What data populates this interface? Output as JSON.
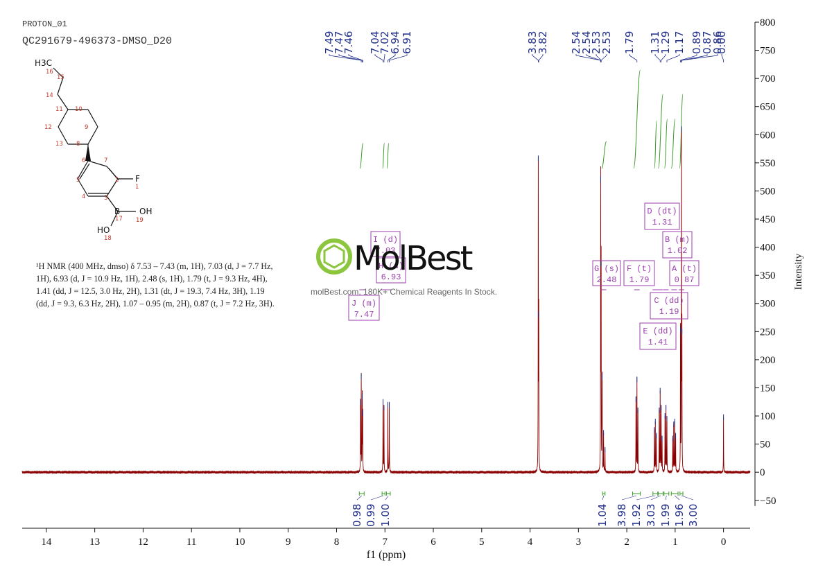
{
  "header": {
    "line1": "PROTON_01",
    "line2": "QC291679-496373-DMSO_D20"
  },
  "nmr_text": {
    "line1": "¹H NMR (400 MHz, dmso) δ 7.53 – 7.43 (m, 1H), 7.03 (d, J = 7.7 Hz,",
    "line2": "1H), 6.93 (d, J = 10.9 Hz, 1H), 2.48 (s, 1H), 1.79 (t, J = 9.3 Hz, 4H),",
    "line3": "1.41 (dd, J = 12.5, 3.0 Hz, 2H), 1.31 (dt, J = 19.3, 7.4 Hz, 3H), 1.19",
    "line4": "(dd, J = 9.3, 6.3 Hz, 2H), 1.07 – 0.95 (m, 2H), 0.87 (t, J = 7.2 Hz, 3H)."
  },
  "watermark": {
    "brand": "MolBest",
    "tagline": "molBest.com, 180K+ Chemical Reagents In Stock."
  },
  "structure": {
    "atoms": [
      "H3C",
      "F",
      "B",
      "OH",
      "HO"
    ],
    "numbers": [
      "16",
      "15",
      "14",
      "11",
      "10",
      "9",
      "12",
      "13",
      "8",
      "7",
      "6",
      "5",
      "4",
      "3",
      "2",
      "1",
      "17",
      "19",
      "18"
    ]
  },
  "chart_data": {
    "type": "line",
    "xlabel": "f1 (ppm)",
    "ylabel": "Intensity",
    "xlim": [
      14.5,
      -0.55
    ],
    "ylim": [
      -70,
      800
    ],
    "x_ticks": [
      14,
      13,
      12,
      11,
      10,
      9,
      8,
      7,
      6,
      5,
      4,
      3,
      2,
      1,
      0
    ],
    "y_ticks": [
      -50,
      0,
      50,
      100,
      150,
      200,
      250,
      300,
      350,
      400,
      450,
      500,
      550,
      600,
      650,
      700,
      750,
      800
    ],
    "colors": {
      "spectrum": "#8b0000",
      "integral": "#3a9a2a",
      "label": "#1f2d8a",
      "multiplet_box": "#9b3fae"
    },
    "peaks": [
      {
        "ppm": 7.505,
        "height": 125
      },
      {
        "ppm": 7.49,
        "height": 170
      },
      {
        "ppm": 7.47,
        "height": 135
      },
      {
        "ppm": 7.46,
        "height": 105
      },
      {
        "ppm": 7.04,
        "height": 125
      },
      {
        "ppm": 7.02,
        "height": 115
      },
      {
        "ppm": 6.94,
        "height": 120
      },
      {
        "ppm": 6.91,
        "height": 120
      },
      {
        "ppm": 3.83,
        "height": 558
      },
      {
        "ppm": 3.82,
        "height": 280
      },
      {
        "ppm": 2.54,
        "height": 520
      },
      {
        "ppm": 2.53,
        "height": 370
      },
      {
        "ppm": 2.51,
        "height": 170
      },
      {
        "ppm": 2.48,
        "height": 70
      },
      {
        "ppm": 2.45,
        "height": 40
      },
      {
        "ppm": 1.81,
        "height": 130
      },
      {
        "ppm": 1.79,
        "height": 165
      },
      {
        "ppm": 1.77,
        "height": 110
      },
      {
        "ppm": 1.43,
        "height": 75
      },
      {
        "ppm": 1.41,
        "height": 90
      },
      {
        "ppm": 1.39,
        "height": 65
      },
      {
        "ppm": 1.33,
        "height": 110
      },
      {
        "ppm": 1.31,
        "height": 145
      },
      {
        "ppm": 1.29,
        "height": 115
      },
      {
        "ppm": 1.27,
        "height": 60
      },
      {
        "ppm": 1.21,
        "height": 100
      },
      {
        "ppm": 1.19,
        "height": 115
      },
      {
        "ppm": 1.17,
        "height": 95
      },
      {
        "ppm": 1.05,
        "height": 60
      },
      {
        "ppm": 1.03,
        "height": 85
      },
      {
        "ppm": 1.01,
        "height": 90
      },
      {
        "ppm": 0.99,
        "height": 65
      },
      {
        "ppm": 0.89,
        "height": 255
      },
      {
        "ppm": 0.87,
        "height": 610
      },
      {
        "ppm": 0.86,
        "height": 250
      },
      {
        "ppm": 0.0,
        "height": 98
      }
    ],
    "peak_label_groups": [
      {
        "labels": [
          "7.49",
          "7.47",
          "7.46"
        ],
        "targets": [
          7.49,
          7.47,
          7.46
        ]
      },
      {
        "labels": [
          "7.04",
          "7.02"
        ],
        "targets": [
          7.04,
          7.02
        ]
      },
      {
        "labels": [
          "6.94",
          "6.91"
        ],
        "targets": [
          6.94,
          6.91
        ]
      },
      {
        "labels": [
          "3.83",
          "3.82"
        ],
        "targets": [
          3.83,
          3.82
        ]
      },
      {
        "labels": [
          "2.54",
          "2.54",
          "2.53",
          "2.53"
        ],
        "targets": [
          2.54,
          2.54,
          2.53,
          2.53
        ]
      },
      {
        "labels": [
          "1.79"
        ],
        "targets": [
          1.79
        ]
      },
      {
        "labels": [
          "1.31",
          "1.29"
        ],
        "targets": [
          1.31,
          1.29
        ]
      },
      {
        "labels": [
          "1.17"
        ],
        "targets": [
          1.17
        ]
      },
      {
        "labels": [
          "0.89",
          "0.87",
          "0.86"
        ],
        "targets": [
          0.89,
          0.87,
          0.86
        ]
      },
      {
        "labels": [
          "0.00"
        ],
        "targets": [
          0.0
        ]
      }
    ],
    "integrals": [
      {
        "from": 7.53,
        "to": 7.43,
        "value": "0.98"
      },
      {
        "from": 7.06,
        "to": 7.0,
        "value": "0.99"
      },
      {
        "from": 6.97,
        "to": 6.89,
        "value": "1.00"
      },
      {
        "from": 2.5,
        "to": 2.45,
        "value": "1.04"
      },
      {
        "from": 1.88,
        "to": 1.72,
        "value": "3.98"
      },
      {
        "from": 1.46,
        "to": 1.36,
        "value": "1.92"
      },
      {
        "from": 1.35,
        "to": 1.25,
        "value": "3.03"
      },
      {
        "from": 1.23,
        "to": 1.13,
        "value": "1.99"
      },
      {
        "from": 1.08,
        "to": 0.94,
        "value": "1.96"
      },
      {
        "from": 0.9,
        "to": 0.84,
        "value": "3.00"
      }
    ],
    "multiplets": [
      {
        "id": "I",
        "type": "d",
        "shift": "7.03",
        "ppm": 7.03
      },
      {
        "id": "H",
        "type": "d",
        "shift": "6.93",
        "ppm": 6.93
      },
      {
        "id": "J",
        "type": "m",
        "shift": "7.47",
        "ppm": 7.47
      },
      {
        "id": "G",
        "type": "s",
        "shift": "2.48",
        "ppm": 2.48
      },
      {
        "id": "F",
        "type": "t",
        "shift": "1.79",
        "ppm": 1.79
      },
      {
        "id": "D",
        "type": "dt",
        "shift": "1.31",
        "ppm": 1.31
      },
      {
        "id": "B",
        "type": "m",
        "shift": "1.02",
        "ppm": 1.02
      },
      {
        "id": "A",
        "type": "t",
        "shift": "0.87",
        "ppm": 0.87
      },
      {
        "id": "C",
        "type": "dd",
        "shift": "1.19",
        "ppm": 1.19
      },
      {
        "id": "E",
        "type": "dd",
        "shift": "1.41",
        "ppm": 1.41
      }
    ]
  }
}
